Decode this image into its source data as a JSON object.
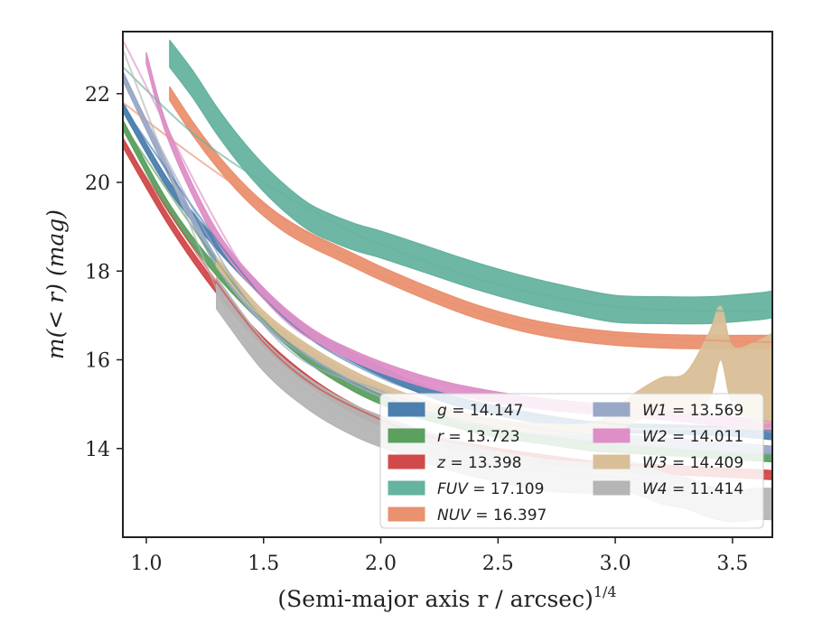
{
  "chart_data": {
    "type": "line",
    "xlabel": "(Semi-major axis r / arcsec)",
    "xlabel_sup": "1/4",
    "ylabel": "m(< r) (mag)",
    "xlim": [
      0.9,
      3.67
    ],
    "ylim": [
      23.4,
      12.0
    ],
    "y_inverted": true,
    "grid": false,
    "legend_position": "lower-right",
    "legend_columns": 2,
    "x_ticks": [
      1.0,
      1.5,
      2.0,
      2.5,
      3.0,
      3.5
    ],
    "x_tick_labels": [
      "1.0",
      "1.5",
      "2.0",
      "2.5",
      "3.0",
      "3.5"
    ],
    "y_ticks": [
      14,
      16,
      18,
      20,
      22
    ],
    "y_tick_labels": [
      "14",
      "16",
      "18",
      "20",
      "22"
    ],
    "series": [
      {
        "name": "g",
        "value": "14.147",
        "color": "#4c7fae",
        "band_width": 0.1,
        "x": [
          0.9,
          1.1,
          1.3,
          1.5,
          1.7,
          1.9,
          2.1,
          2.3,
          2.5,
          2.7,
          2.9,
          3.1,
          3.3,
          3.5,
          3.67
        ],
        "y": [
          21.7,
          19.9,
          18.6,
          17.5,
          16.6,
          16.0,
          15.5,
          15.1,
          14.85,
          14.65,
          14.5,
          14.45,
          14.42,
          14.38,
          14.3
        ],
        "model_x": [
          0.9,
          1.5,
          2.0,
          2.5,
          3.0,
          3.5,
          3.67
        ],
        "model_y": [
          21.7,
          17.4,
          15.6,
          14.9,
          14.55,
          14.42,
          14.4
        ]
      },
      {
        "name": "r",
        "value": "13.723",
        "color": "#5ba05f",
        "band_width": 0.1,
        "x": [
          0.9,
          1.1,
          1.3,
          1.5,
          1.7,
          1.9,
          2.1,
          2.3,
          2.5,
          2.7,
          2.9,
          3.1,
          3.3,
          3.5,
          3.67
        ],
        "y": [
          21.3,
          19.4,
          18.0,
          16.9,
          16.0,
          15.35,
          14.9,
          14.6,
          14.35,
          14.2,
          14.05,
          13.98,
          13.92,
          13.86,
          13.8
        ],
        "model_x": [
          0.9,
          1.5,
          2.0,
          2.5,
          3.0,
          3.5,
          3.67
        ],
        "model_y": [
          21.3,
          16.9,
          15.2,
          14.45,
          14.05,
          13.9,
          13.85
        ]
      },
      {
        "name": "z",
        "value": "13.398",
        "color": "#d14a4b",
        "band_width": 0.1,
        "x": [
          0.9,
          1.1,
          1.3,
          1.5,
          1.7,
          1.9,
          2.1,
          2.3,
          2.5,
          2.7,
          2.9,
          3.1,
          3.3,
          3.5,
          3.67
        ],
        "y": [
          20.9,
          19.1,
          17.6,
          16.4,
          15.5,
          14.85,
          14.4,
          14.1,
          13.9,
          13.75,
          13.62,
          13.55,
          13.5,
          13.45,
          13.4
        ],
        "model_x": [
          0.9,
          1.5,
          2.0,
          2.5,
          3.0,
          3.5,
          3.67
        ],
        "model_y": [
          20.9,
          16.4,
          14.65,
          13.95,
          13.65,
          13.5,
          13.45
        ]
      },
      {
        "name": "FUV",
        "value": "17.109",
        "color": "#66b39f",
        "band_width": 0.3,
        "x": [
          1.1,
          1.2,
          1.3,
          1.4,
          1.5,
          1.6,
          1.7,
          1.8,
          1.9,
          2.0,
          2.2,
          2.4,
          2.6,
          2.8,
          3.0,
          3.2,
          3.4,
          3.6,
          3.67
        ],
        "y": [
          22.9,
          22.2,
          21.4,
          20.7,
          20.1,
          19.6,
          19.2,
          18.95,
          18.75,
          18.6,
          18.25,
          17.9,
          17.6,
          17.35,
          17.15,
          17.12,
          17.12,
          17.2,
          17.25
        ],
        "model_x": [
          0.9,
          1.2,
          1.5,
          1.8,
          2.0,
          2.5,
          3.0,
          3.5,
          3.67
        ],
        "model_y": [
          22.6,
          21.1,
          20.0,
          19.1,
          18.6,
          17.7,
          17.2,
          17.1,
          17.1
        ]
      },
      {
        "name": "NUV",
        "value": "16.397",
        "color": "#ea9170",
        "band_width": 0.15,
        "x": [
          1.1,
          1.2,
          1.3,
          1.4,
          1.5,
          1.6,
          1.7,
          1.8,
          1.9,
          2.0,
          2.2,
          2.4,
          2.6,
          2.8,
          3.0,
          3.2,
          3.4,
          3.6,
          3.67
        ],
        "y": [
          22.0,
          21.2,
          20.5,
          19.9,
          19.4,
          19.0,
          18.7,
          18.45,
          18.2,
          17.95,
          17.5,
          17.1,
          16.8,
          16.6,
          16.48,
          16.42,
          16.4,
          16.4,
          16.4
        ],
        "model_x": [
          0.9,
          1.2,
          1.5,
          1.8,
          2.0,
          2.5,
          3.0,
          3.5,
          3.67
        ],
        "model_y": [
          21.8,
          20.6,
          19.5,
          18.5,
          17.9,
          16.95,
          16.55,
          16.42,
          16.4
        ]
      },
      {
        "name": "W1",
        "value": "13.569",
        "color": "#9aa8c8",
        "band_width": 0.1,
        "x": [
          0.9,
          1.1,
          1.3,
          1.5,
          1.7,
          1.9,
          2.1,
          2.3,
          2.5,
          2.7,
          2.9,
          3.1,
          3.3,
          3.5,
          3.67
        ],
        "y": [
          22.4,
          20.2,
          18.2,
          16.9,
          16.1,
          15.5,
          15.05,
          14.75,
          14.55,
          14.4,
          14.28,
          14.18,
          14.1,
          14.02,
          13.95
        ],
        "model_x": [
          0.9,
          1.5,
          2.0,
          2.5,
          3.0,
          3.5,
          3.67
        ],
        "model_y": [
          22.4,
          16.8,
          15.3,
          14.6,
          14.25,
          14.05,
          13.95
        ]
      },
      {
        "name": "W2",
        "value": "14.011",
        "color": "#de8fc7",
        "band_width": 0.12,
        "x": [
          1.0,
          1.1,
          1.3,
          1.5,
          1.7,
          1.9,
          2.1,
          2.3,
          2.5,
          2.7,
          2.9,
          3.1,
          3.3,
          3.5,
          3.67
        ],
        "y": [
          22.8,
          21.0,
          18.8,
          17.5,
          16.6,
          16.05,
          15.65,
          15.35,
          15.15,
          15.0,
          14.9,
          14.82,
          14.72,
          14.6,
          14.5
        ],
        "model_x": [
          0.9,
          1.5,
          2.0,
          2.5,
          3.0,
          3.5,
          3.67
        ],
        "model_y": [
          23.2,
          17.4,
          15.9,
          15.2,
          14.9,
          14.68,
          14.6
        ]
      },
      {
        "name": "W3",
        "value": "14.409",
        "color": "#d9bf97",
        "band_width": 0.2,
        "x": [
          1.3,
          1.5,
          1.7,
          1.9,
          2.1,
          2.3,
          2.5,
          2.7,
          2.9,
          3.0,
          3.1,
          3.2,
          3.3,
          3.4,
          3.45,
          3.5,
          3.6,
          3.67
        ],
        "y": [
          18.2,
          17.0,
          16.2,
          15.6,
          15.15,
          14.8,
          14.55,
          14.45,
          14.42,
          14.6,
          14.9,
          15.1,
          15.2,
          15.8,
          16.6,
          15.7,
          15.5,
          15.6
        ],
        "band_lo": [
          0.1,
          0.1,
          0.1,
          0.1,
          0.1,
          0.1,
          0.1,
          0.1,
          0.15,
          0.3,
          0.4,
          0.5,
          0.5,
          0.8,
          0.6,
          0.6,
          0.9,
          1.0
        ],
        "band_hi": [
          0.1,
          0.1,
          0.1,
          0.1,
          0.1,
          0.1,
          0.1,
          0.1,
          0.1,
          0.2,
          0.25,
          0.3,
          0.4,
          0.7,
          0.6,
          0.7,
          0.9,
          1.0
        ],
        "model_x": [
          1.3,
          1.5,
          2.0,
          2.5,
          3.0,
          3.5,
          3.67
        ],
        "model_y": [
          18.2,
          16.95,
          15.35,
          14.6,
          14.45,
          14.45,
          14.45
        ]
      },
      {
        "name": "W4",
        "value": "11.414",
        "color": "#b5b5b5",
        "band_width": 0.35,
        "x": [
          1.3,
          1.5,
          1.7,
          1.9,
          2.1,
          2.3,
          2.5,
          2.7,
          2.9,
          3.0,
          3.1,
          3.2,
          3.3,
          3.4,
          3.5,
          3.6,
          3.67
        ],
        "y": [
          17.5,
          16.1,
          15.2,
          14.6,
          14.2,
          13.85,
          13.6,
          13.4,
          13.35,
          13.45,
          13.3,
          13.1,
          13.0,
          12.8,
          12.7,
          12.75,
          12.75
        ],
        "model_x": [
          0.9,
          1.3,
          1.5,
          2.0,
          2.5,
          3.0,
          3.5,
          3.67
        ],
        "model_y": [
          23.0,
          17.6,
          16.1,
          14.3,
          13.6,
          13.35,
          12.95,
          12.85
        ]
      }
    ]
  }
}
